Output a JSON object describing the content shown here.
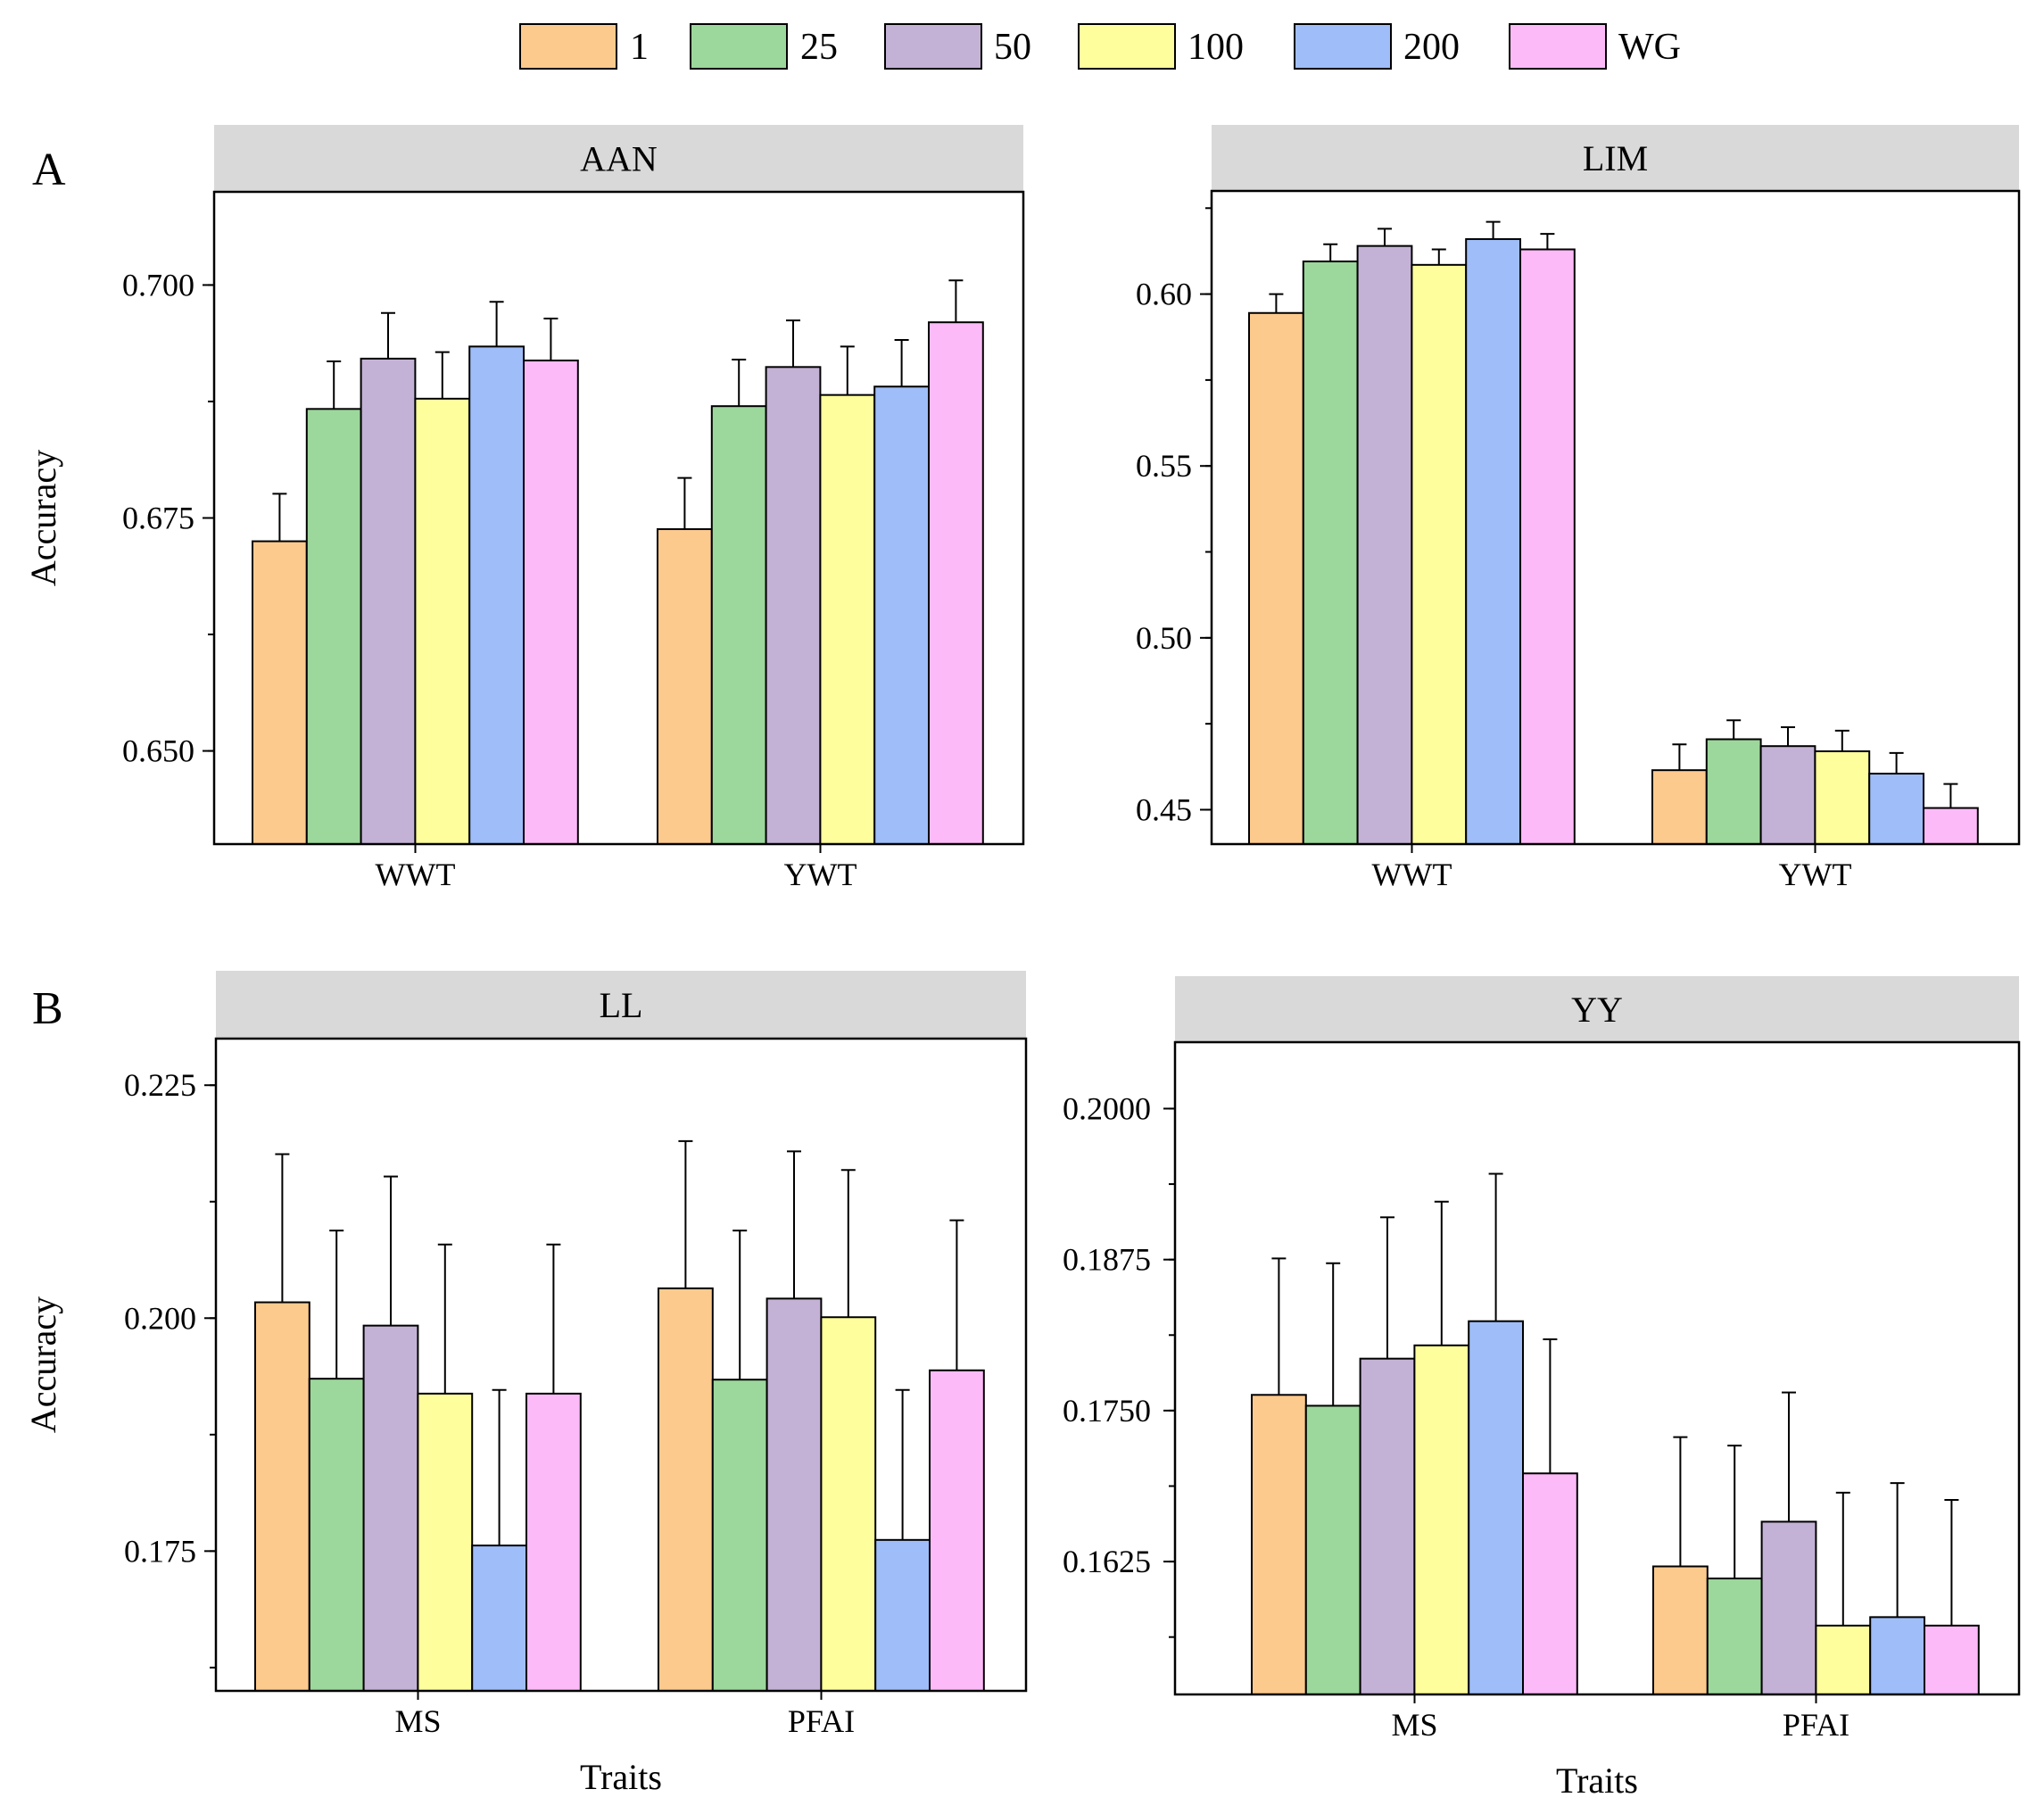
{
  "legend": {
    "placement": "top-center",
    "entries": [
      {
        "label": "1",
        "color": "#FDCA8E"
      },
      {
        "label": "25",
        "color": "#9CD79B"
      },
      {
        "label": "50",
        "color": "#C4B2D6"
      },
      {
        "label": "100",
        "color": "#FEFE9D"
      },
      {
        "label": "200",
        "color": "#9FBDF8"
      },
      {
        "label": "WG",
        "color": "#FDBAF8"
      }
    ]
  },
  "panel_letters": [
    "A",
    "B"
  ],
  "chart_data": [
    {
      "type": "bar",
      "title": "AAN",
      "xlabel": "",
      "ylabel": "Accuracy",
      "categories": [
        "WWT",
        "YWT"
      ],
      "ylim": [
        0.64,
        0.71
      ],
      "yticks": [
        0.65,
        0.675,
        0.7
      ],
      "ytick_labels": [
        "0.650",
        "0.675",
        "0.700"
      ],
      "minor_step": 0.0125,
      "grid": false,
      "series": [
        {
          "name": "1",
          "values": [
            0.6725,
            0.6738
          ],
          "errors": [
            0.0051,
            0.0055
          ]
        },
        {
          "name": "25",
          "values": [
            0.6867,
            0.687
          ],
          "errors": [
            0.0051,
            0.005
          ]
        },
        {
          "name": "50",
          "values": [
            0.6921,
            0.6912
          ],
          "errors": [
            0.0049,
            0.005
          ]
        },
        {
          "name": "100",
          "values": [
            0.6878,
            0.6882
          ],
          "errors": [
            0.005,
            0.0052
          ]
        },
        {
          "name": "200",
          "values": [
            0.6934,
            0.6891
          ],
          "errors": [
            0.0048,
            0.005
          ]
        },
        {
          "name": "WG",
          "values": [
            0.6919,
            0.696
          ],
          "errors": [
            0.0045,
            0.0045
          ]
        }
      ]
    },
    {
      "type": "bar",
      "title": "LIM",
      "xlabel": "",
      "ylabel": "",
      "categories": [
        "WWT",
        "YWT"
      ],
      "ylim": [
        0.44,
        0.63
      ],
      "yticks": [
        0.45,
        0.5,
        0.55,
        0.6
      ],
      "ytick_labels": [
        "0.45",
        "0.50",
        "0.55",
        "0.60"
      ],
      "minor_step": 0.025,
      "grid": false,
      "series": [
        {
          "name": "1",
          "values": [
            0.5945,
            0.4615
          ],
          "errors": [
            0.0055,
            0.0075
          ]
        },
        {
          "name": "25",
          "values": [
            0.6095,
            0.4705
          ],
          "errors": [
            0.005,
            0.0055
          ]
        },
        {
          "name": "50",
          "values": [
            0.614,
            0.4685
          ],
          "errors": [
            0.005,
            0.0055
          ]
        },
        {
          "name": "100",
          "values": [
            0.6085,
            0.467
          ],
          "errors": [
            0.0045,
            0.006
          ]
        },
        {
          "name": "200",
          "values": [
            0.616,
            0.4605
          ],
          "errors": [
            0.005,
            0.006
          ]
        },
        {
          "name": "WG",
          "values": [
            0.613,
            0.4505
          ],
          "errors": [
            0.0045,
            0.007
          ]
        }
      ]
    },
    {
      "type": "bar",
      "title": "LL",
      "xlabel": "Traits",
      "ylabel": "Accuracy",
      "categories": [
        "MS",
        "PFAI"
      ],
      "ylim": [
        0.16,
        0.23
      ],
      "yticks": [
        0.175,
        0.2,
        0.225
      ],
      "ytick_labels": [
        "0.175",
        "0.200",
        "0.225"
      ],
      "minor_step": 0.0125,
      "grid": false,
      "series": [
        {
          "name": "1",
          "values": [
            0.2017,
            0.2032
          ],
          "errors": [
            0.0159,
            0.0158
          ]
        },
        {
          "name": "25",
          "values": [
            0.1935,
            0.1934
          ],
          "errors": [
            0.0159,
            0.016
          ]
        },
        {
          "name": "50",
          "values": [
            0.1992,
            0.2021
          ],
          "errors": [
            0.016,
            0.0158
          ]
        },
        {
          "name": "100",
          "values": [
            0.1919,
            0.2001
          ],
          "errors": [
            0.016,
            0.0158
          ]
        },
        {
          "name": "200",
          "values": [
            0.1756,
            0.1762
          ],
          "errors": [
            0.0167,
            0.0161
          ]
        },
        {
          "name": "WG",
          "values": [
            0.1919,
            0.1944
          ],
          "errors": [
            0.016,
            0.0161
          ]
        }
      ]
    },
    {
      "type": "bar",
      "title": "YY",
      "xlabel": "Traits",
      "ylabel": "",
      "categories": [
        "MS",
        "PFAI"
      ],
      "ylim": [
        0.1515,
        0.2055
      ],
      "yticks": [
        0.1625,
        0.175,
        0.1875,
        0.2
      ],
      "ytick_labels": [
        "0.1625",
        "0.1750",
        "0.1875",
        "0.2000"
      ],
      "minor_step": 0.00625,
      "grid": false,
      "series": [
        {
          "name": "1",
          "values": [
            0.1763,
            0.1621
          ],
          "errors": [
            0.0113,
            0.0107
          ]
        },
        {
          "name": "25",
          "values": [
            0.1754,
            0.1611
          ],
          "errors": [
            0.0118,
            0.011
          ]
        },
        {
          "name": "50",
          "values": [
            0.1793,
            0.1658
          ],
          "errors": [
            0.0117,
            0.0107
          ]
        },
        {
          "name": "100",
          "values": [
            0.1804,
            0.1572
          ],
          "errors": [
            0.0119,
            0.011
          ]
        },
        {
          "name": "200",
          "values": [
            0.1824,
            0.1579
          ],
          "errors": [
            0.0122,
            0.0111
          ]
        },
        {
          "name": "WG",
          "values": [
            0.1698,
            0.1572
          ],
          "errors": [
            0.0111,
            0.0104
          ]
        }
      ]
    }
  ]
}
